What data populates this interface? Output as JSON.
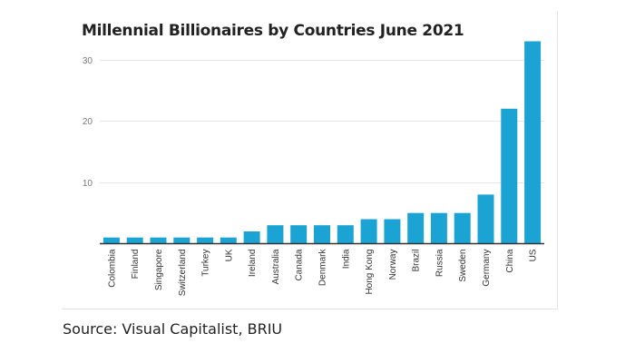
{
  "chart_data": {
    "type": "bar",
    "title": "Millennial Billionaires by Countries June 2021",
    "xlabel": "",
    "ylabel": "",
    "ylim": [
      0,
      35
    ],
    "yticks": [
      10,
      20,
      30
    ],
    "grid": true,
    "color": "#1ba3d4",
    "categories": [
      "Colombia",
      "Finland",
      "Singapore",
      "Switzerland",
      "Turkey",
      "UK",
      "Ireland",
      "Australia",
      "Canada",
      "Denmark",
      "India",
      "Hong Kong",
      "Norway",
      "Brazil",
      "Russia",
      "Sweden",
      "Germany",
      "China",
      "US"
    ],
    "values": [
      1,
      1,
      1,
      1,
      1,
      1,
      2,
      3,
      3,
      3,
      3,
      4,
      4,
      5,
      5,
      5,
      8,
      22,
      33
    ]
  },
  "source": "Source: Visual Capitalist, BRIU"
}
